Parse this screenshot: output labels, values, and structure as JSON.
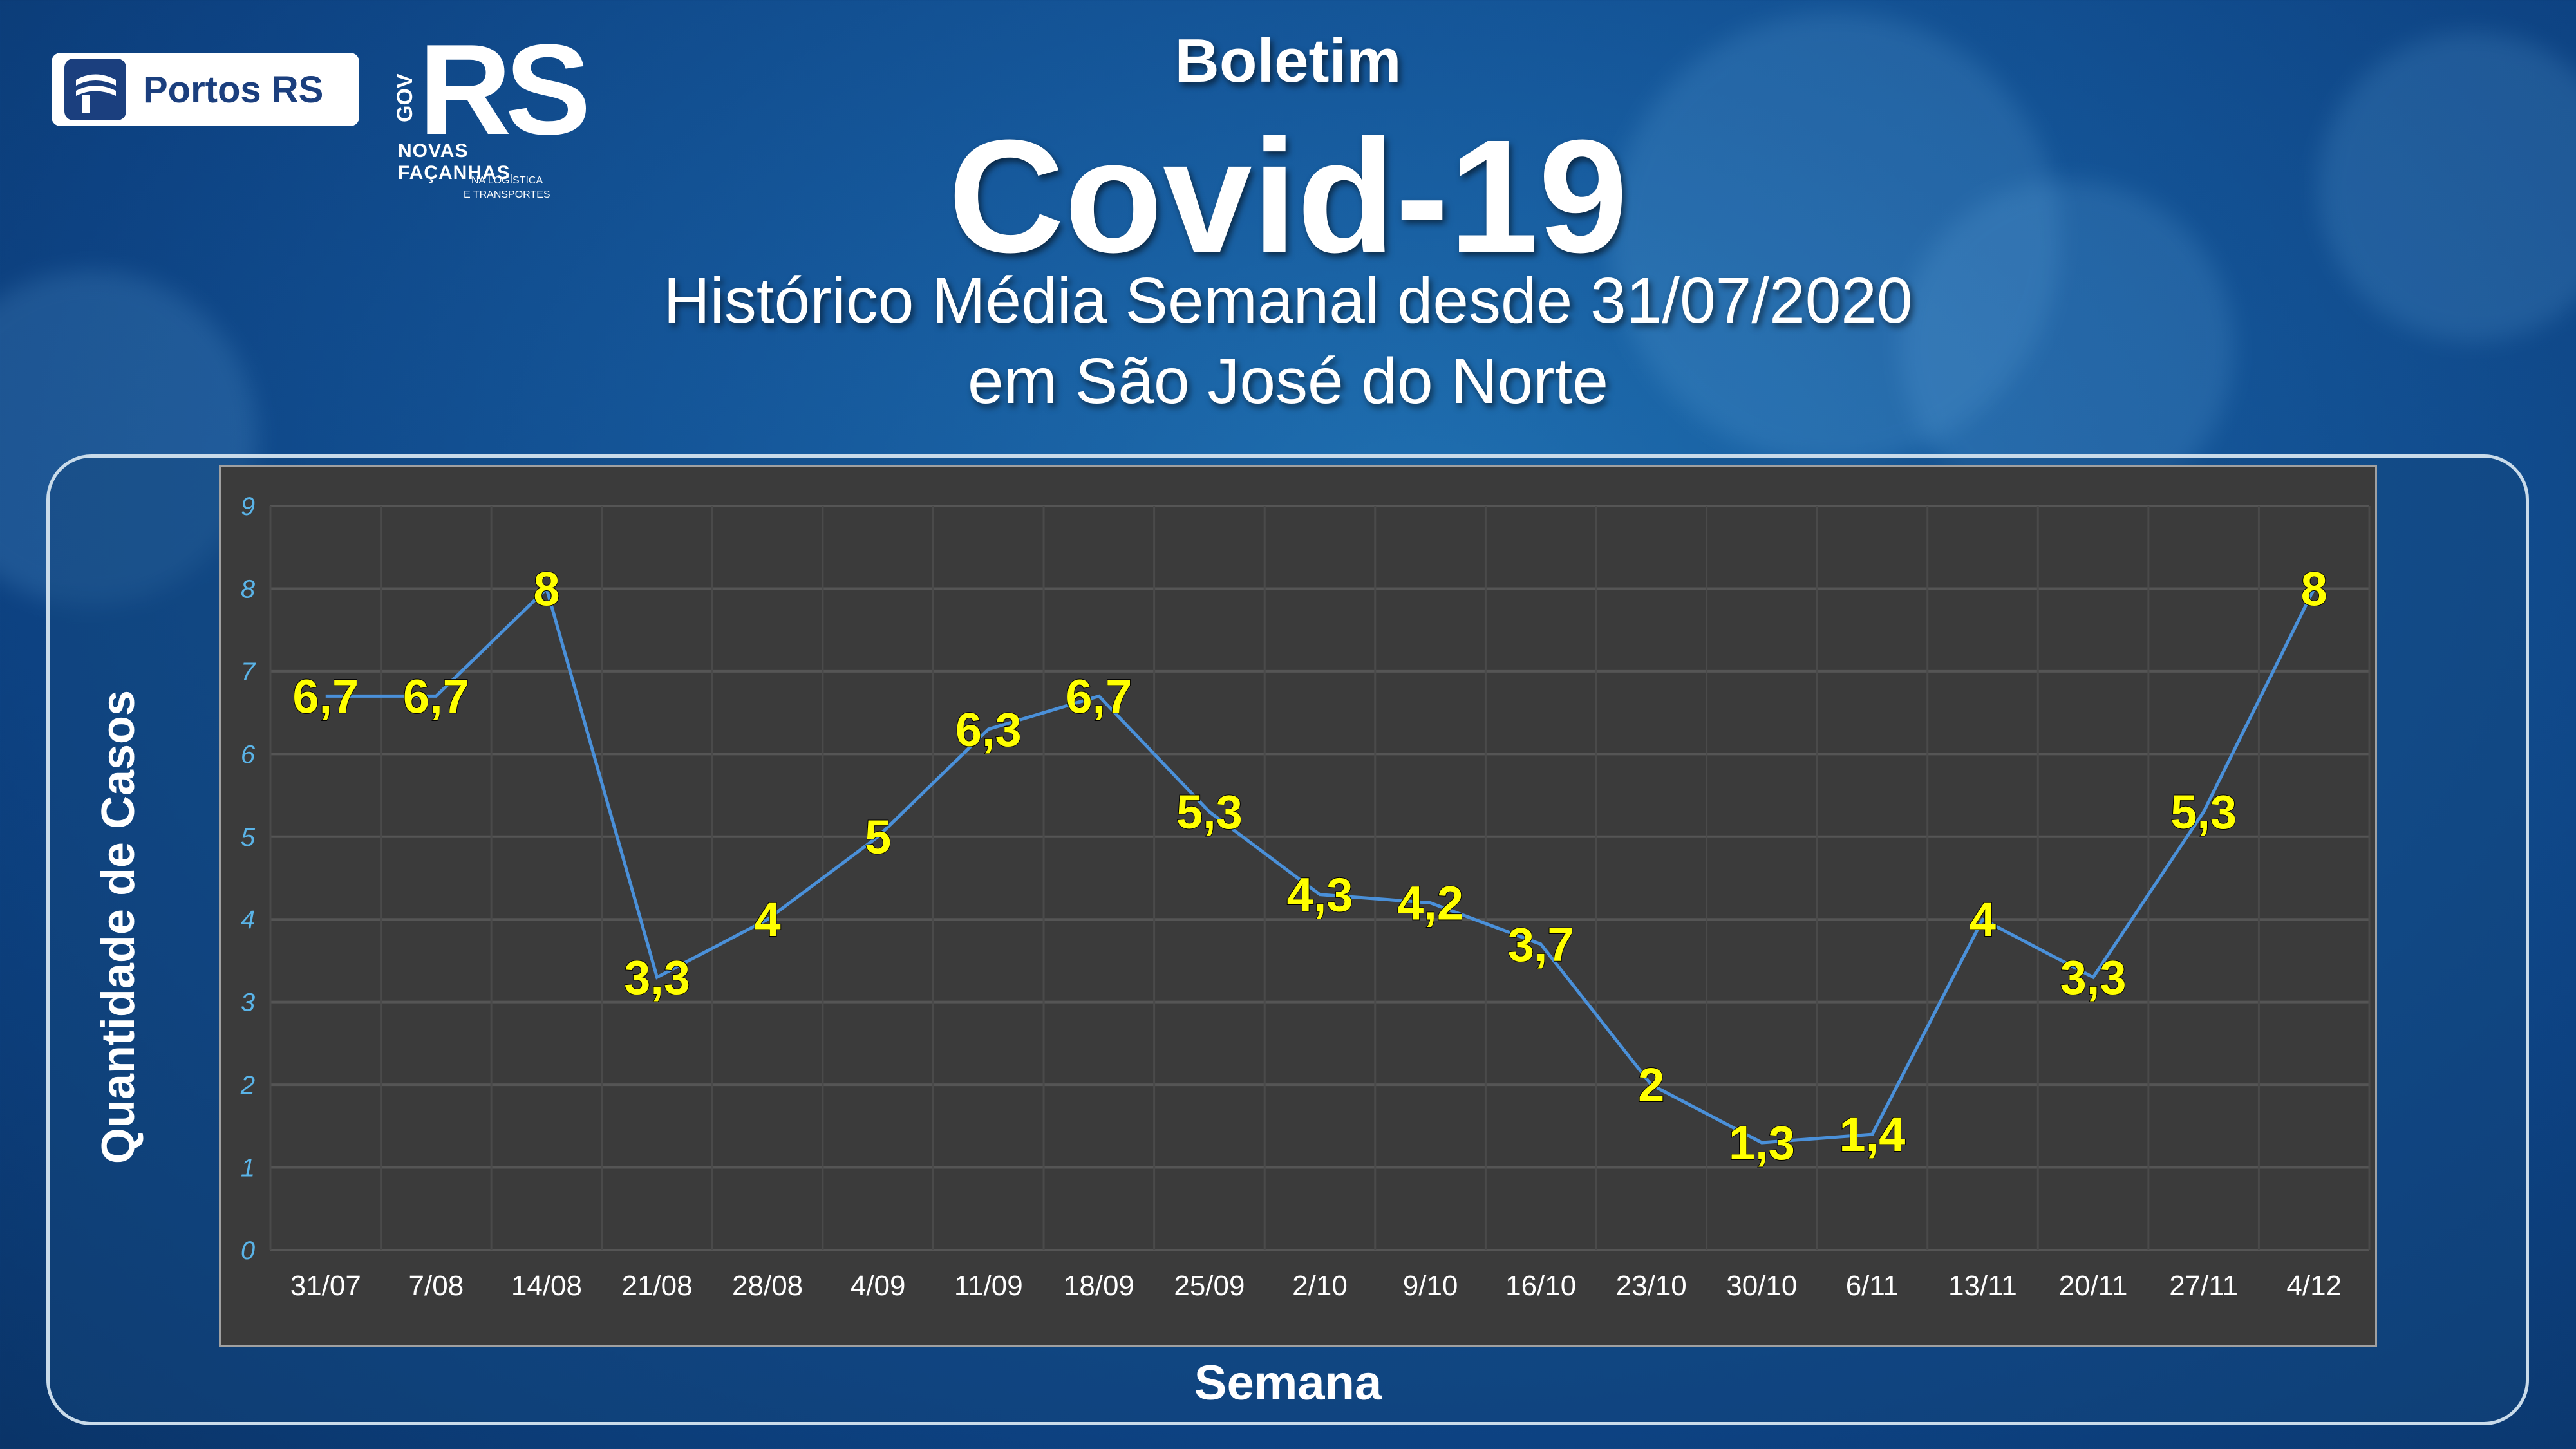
{
  "header": {
    "boletim": "Boletim",
    "title": "Covid-19",
    "subtitle_line1": "Histórico Média Semanal desde 31/07/2020",
    "subtitle_line2": "em São José do Norte"
  },
  "logos": {
    "portos": "Portos RS",
    "gov_rs": "RS",
    "gov_label": "GOV",
    "novas_facanhas": "NOVAS FAÇANHAS",
    "secretaria_line1": "NA LOGÍSTICA",
    "secretaria_line2": "E TRANSPORTES"
  },
  "colors": {
    "line": "#4a90d9",
    "data_label": "#ffff00",
    "y_tick": "#5ab4e8",
    "x_tick": "#ffffff",
    "plot_bg": "#3b3b3b"
  },
  "chart_data": {
    "type": "line",
    "xlabel": "Semana",
    "ylabel": "Quantidade de Casos",
    "ylim": [
      0,
      9
    ],
    "yticks": [
      "0",
      "1",
      "2",
      "3",
      "4",
      "5",
      "6",
      "7",
      "8",
      "9"
    ],
    "grid": true,
    "categories": [
      "31/07",
      "7/08",
      "14/08",
      "21/08",
      "28/08",
      "4/09",
      "11/09",
      "18/09",
      "25/09",
      "2/10",
      "9/10",
      "16/10",
      "23/10",
      "30/10",
      "6/11",
      "13/11",
      "20/11",
      "27/11",
      "4/12"
    ],
    "values": [
      6.7,
      6.7,
      8,
      3.3,
      4,
      5,
      6.3,
      6.7,
      5.3,
      4.3,
      4.2,
      3.7,
      2,
      1.3,
      1.4,
      4,
      3.3,
      5.3,
      8
    ],
    "labels": [
      "6,7",
      "6,7",
      "8",
      "3,3",
      "4",
      "5",
      "6,3",
      "6,7",
      "5,3",
      "4,3",
      "4,2",
      "3,7",
      "2",
      "1,3",
      "1,4",
      "4",
      "3,3",
      "5,3",
      "8"
    ]
  }
}
